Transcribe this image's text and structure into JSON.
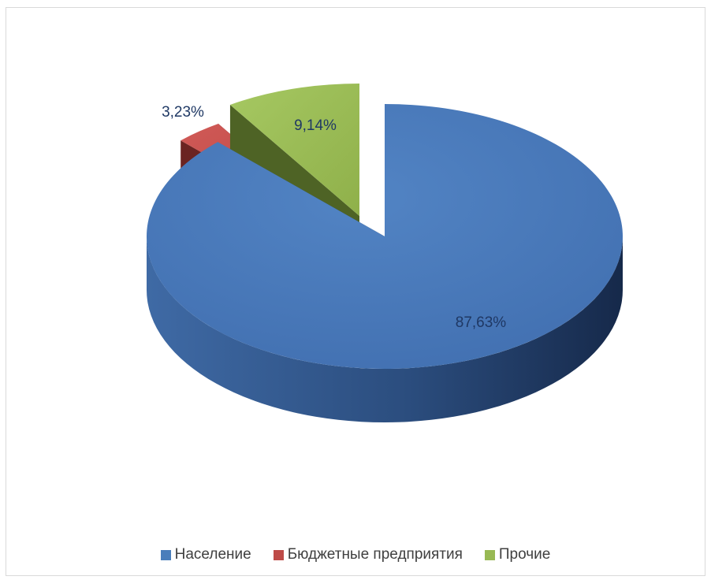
{
  "chart_data": {
    "type": "pie",
    "style": "3d-exploded",
    "title": "",
    "slices": [
      {
        "name": "Население",
        "value": 87.63,
        "label": "87,63%",
        "color": "#4a7ebb"
      },
      {
        "name": "Бюджетные предприятия",
        "value": 3.23,
        "label": "3,23%",
        "color": "#be4b48"
      },
      {
        "name": "Прочие",
        "value": 9.14,
        "label": "9,14%",
        "color": "#98b954"
      }
    ],
    "legend": {
      "position": "bottom"
    }
  }
}
